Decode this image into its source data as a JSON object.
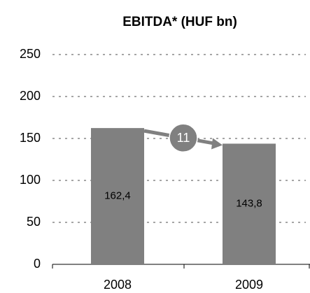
{
  "chart_data": {
    "type": "bar",
    "title": "EBITDA* (HUF bn)",
    "categories": [
      "2008",
      "2009"
    ],
    "values": [
      162.4,
      143.8
    ],
    "value_labels": [
      "162,4",
      "143,8"
    ],
    "color": "#808080",
    "ylim": [
      0,
      250
    ],
    "yticks": [
      0,
      50,
      100,
      150,
      200,
      250
    ],
    "grid": true,
    "annotations": [
      {
        "text": "11"
      }
    ]
  }
}
